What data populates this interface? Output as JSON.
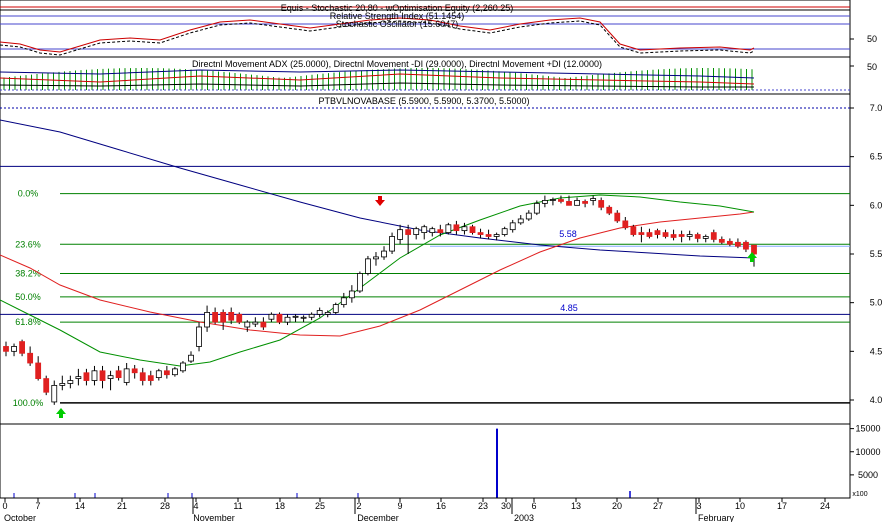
{
  "colors": {
    "background": "#ffffff",
    "frame": "#000000",
    "up_candle": "#ffffff",
    "down_candle": "#e02020",
    "fib_line": "#008000",
    "fib_label": "#008000",
    "blue_line": "#000080",
    "red_line": "#e02020",
    "green_line": "#009000",
    "volume_bar": "#0000cc",
    "arrow_red": "#e00000",
    "arrow_green": "#00cc00",
    "annotation": "#0000cc",
    "grid_dotted": "#0000aa"
  },
  "indicator_panel": {
    "title_1": "Equis - Stochastic 20,80 - wOptimisation Equity (2,260.25)",
    "title_2": "Relative Strength Index (51.1454)",
    "title_3": "Stochastic Oscillator (15.6047)",
    "axis_label": "50"
  },
  "dmi_panel": {
    "title": "Directnl Movement ADX (25.0000), Directnl Movement -DI (29.0000), Directnl Movement +DI (12.0000)",
    "axis_label": "50"
  },
  "price_panel": {
    "title": "PTBVLNOVABASE (5.5900, 5.5900, 5.3700, 5.5000)",
    "fib_labels": [
      "0.0%",
      "23.6%",
      "38.2%",
      "50.0%",
      "61.8%",
      "100.0%"
    ],
    "annotation_1": "5.58",
    "annotation_2": "4.85",
    "y_tick_labels": [
      "7.0",
      "6.5",
      "6.0",
      "5.5",
      "5.0",
      "4.5",
      "4.0"
    ]
  },
  "volume_panel": {
    "y_tick_labels": [
      "15000",
      "10000",
      "5000",
      "x100"
    ]
  },
  "x_axis": {
    "day_labels": [
      "0",
      "7",
      "14",
      "21",
      "28",
      "4",
      "11",
      "18",
      "25",
      "2",
      "9",
      "16",
      "23",
      "30",
      "6",
      "13",
      "20",
      "27",
      "3",
      "10",
      "17",
      "24"
    ],
    "month_labels": [
      "October",
      "November",
      "December",
      "2003",
      "February"
    ]
  },
  "chart_data": {
    "type": "candlestick",
    "title": "PTBVLNOVABASE (5.5900, 5.5900, 5.3700, 5.5000)",
    "ylim": [
      3.9,
      7.15
    ],
    "fibonacci_levels": [
      {
        "label": "0.0%",
        "value": 6.12
      },
      {
        "label": "23.6%",
        "value": 5.6
      },
      {
        "label": "38.2%",
        "value": 5.3
      },
      {
        "label": "50.0%",
        "value": 5.06
      },
      {
        "label": "61.8%",
        "value": 4.8
      },
      {
        "label": "100.0%",
        "value": 3.97
      }
    ],
    "reference_lines": [
      7.0,
      6.4,
      4.88
    ],
    "candles": [
      {
        "o": 4.55,
        "h": 4.6,
        "l": 4.45,
        "c": 4.5
      },
      {
        "o": 4.5,
        "h": 4.58,
        "l": 4.45,
        "c": 4.55
      },
      {
        "o": 4.6,
        "h": 4.62,
        "l": 4.45,
        "c": 4.48
      },
      {
        "o": 4.48,
        "h": 4.55,
        "l": 4.35,
        "c": 4.38
      },
      {
        "o": 4.38,
        "h": 4.45,
        "l": 4.2,
        "c": 4.22
      },
      {
        "o": 4.22,
        "h": 4.25,
        "l": 4.05,
        "c": 4.08
      },
      {
        "o": 3.98,
        "h": 4.2,
        "l": 3.95,
        "c": 4.15
      },
      {
        "o": 4.15,
        "h": 4.25,
        "l": 4.1,
        "c": 4.17
      },
      {
        "o": 4.17,
        "h": 4.25,
        "l": 4.12,
        "c": 4.2
      },
      {
        "o": 4.22,
        "h": 4.32,
        "l": 4.15,
        "c": 4.24
      },
      {
        "o": 4.28,
        "h": 4.32,
        "l": 4.15,
        "c": 4.2
      },
      {
        "o": 4.2,
        "h": 4.35,
        "l": 4.15,
        "c": 4.3
      },
      {
        "o": 4.3,
        "h": 4.35,
        "l": 4.12,
        "c": 4.2
      },
      {
        "o": 4.22,
        "h": 4.3,
        "l": 4.1,
        "c": 4.25
      },
      {
        "o": 4.3,
        "h": 4.35,
        "l": 4.2,
        "c": 4.23
      },
      {
        "o": 4.18,
        "h": 4.38,
        "l": 4.15,
        "c": 4.32
      },
      {
        "o": 4.32,
        "h": 4.36,
        "l": 4.22,
        "c": 4.28
      },
      {
        "o": 4.28,
        "h": 4.33,
        "l": 4.15,
        "c": 4.2
      },
      {
        "o": 4.25,
        "h": 4.3,
        "l": 4.15,
        "c": 4.2
      },
      {
        "o": 4.23,
        "h": 4.32,
        "l": 4.2,
        "c": 4.3
      },
      {
        "o": 4.3,
        "h": 4.35,
        "l": 4.22,
        "c": 4.26
      },
      {
        "o": 4.26,
        "h": 4.34,
        "l": 4.24,
        "c": 4.32
      },
      {
        "o": 4.3,
        "h": 4.4,
        "l": 4.28,
        "c": 4.38
      },
      {
        "o": 4.4,
        "h": 4.5,
        "l": 4.38,
        "c": 4.46
      },
      {
        "o": 4.55,
        "h": 4.8,
        "l": 4.5,
        "c": 4.75
      },
      {
        "o": 4.75,
        "h": 4.97,
        "l": 4.7,
        "c": 4.9
      },
      {
        "o": 4.9,
        "h": 4.95,
        "l": 4.78,
        "c": 4.8
      },
      {
        "o": 4.9,
        "h": 4.93,
        "l": 4.72,
        "c": 4.8
      },
      {
        "o": 4.9,
        "h": 4.95,
        "l": 4.78,
        "c": 4.82
      },
      {
        "o": 4.88,
        "h": 4.9,
        "l": 4.78,
        "c": 4.8
      },
      {
        "o": 4.75,
        "h": 4.82,
        "l": 4.7,
        "c": 4.8
      },
      {
        "o": 4.78,
        "h": 4.85,
        "l": 4.75,
        "c": 4.8
      },
      {
        "o": 4.8,
        "h": 4.85,
        "l": 4.72,
        "c": 4.75
      },
      {
        "o": 4.83,
        "h": 4.9,
        "l": 4.8,
        "c": 4.88
      },
      {
        "o": 4.88,
        "h": 4.9,
        "l": 4.78,
        "c": 4.8
      },
      {
        "o": 4.8,
        "h": 4.88,
        "l": 4.77,
        "c": 4.85
      },
      {
        "o": 4.85,
        "h": 4.88,
        "l": 4.8,
        "c": 4.86
      },
      {
        "o": 4.84,
        "h": 4.87,
        "l": 4.8,
        "c": 4.85
      },
      {
        "o": 4.85,
        "h": 4.9,
        "l": 4.82,
        "c": 4.88
      },
      {
        "o": 4.88,
        "h": 4.95,
        "l": 4.85,
        "c": 4.92
      },
      {
        "o": 4.88,
        "h": 4.92,
        "l": 4.85,
        "c": 4.9
      },
      {
        "o": 4.9,
        "h": 5.0,
        "l": 4.88,
        "c": 4.98
      },
      {
        "o": 4.98,
        "h": 5.1,
        "l": 4.95,
        "c": 5.05
      },
      {
        "o": 5.05,
        "h": 5.18,
        "l": 5.0,
        "c": 5.12
      },
      {
        "o": 5.12,
        "h": 5.32,
        "l": 5.1,
        "c": 5.3
      },
      {
        "o": 5.3,
        "h": 5.48,
        "l": 5.28,
        "c": 5.45
      },
      {
        "o": 5.45,
        "h": 5.52,
        "l": 5.38,
        "c": 5.47
      },
      {
        "o": 5.47,
        "h": 5.58,
        "l": 5.44,
        "c": 5.53
      },
      {
        "o": 5.53,
        "h": 5.72,
        "l": 5.5,
        "c": 5.68
      },
      {
        "o": 5.65,
        "h": 5.8,
        "l": 5.6,
        "c": 5.75
      },
      {
        "o": 5.75,
        "h": 5.8,
        "l": 5.5,
        "c": 5.7
      },
      {
        "o": 5.7,
        "h": 5.78,
        "l": 5.65,
        "c": 5.76
      },
      {
        "o": 5.72,
        "h": 5.8,
        "l": 5.65,
        "c": 5.78
      },
      {
        "o": 5.72,
        "h": 5.78,
        "l": 5.68,
        "c": 5.76
      },
      {
        "o": 5.75,
        "h": 5.8,
        "l": 5.68,
        "c": 5.72
      },
      {
        "o": 5.72,
        "h": 5.82,
        "l": 5.7,
        "c": 5.8
      },
      {
        "o": 5.8,
        "h": 5.84,
        "l": 5.7,
        "c": 5.74
      },
      {
        "o": 5.74,
        "h": 5.82,
        "l": 5.7,
        "c": 5.78
      },
      {
        "o": 5.78,
        "h": 5.8,
        "l": 5.7,
        "c": 5.72
      },
      {
        "o": 5.72,
        "h": 5.76,
        "l": 5.66,
        "c": 5.7
      },
      {
        "o": 5.7,
        "h": 5.75,
        "l": 5.65,
        "c": 5.68
      },
      {
        "o": 5.68,
        "h": 5.72,
        "l": 5.64,
        "c": 5.7
      },
      {
        "o": 5.7,
        "h": 5.78,
        "l": 5.68,
        "c": 5.76
      },
      {
        "o": 5.75,
        "h": 5.85,
        "l": 5.72,
        "c": 5.82
      },
      {
        "o": 5.82,
        "h": 5.9,
        "l": 5.8,
        "c": 5.86
      },
      {
        "o": 5.86,
        "h": 5.95,
        "l": 5.84,
        "c": 5.92
      },
      {
        "o": 5.92,
        "h": 6.05,
        "l": 5.9,
        "c": 6.02
      },
      {
        "o": 6.02,
        "h": 6.1,
        "l": 5.98,
        "c": 6.05
      },
      {
        "o": 6.05,
        "h": 6.08,
        "l": 6.0,
        "c": 6.06
      },
      {
        "o": 6.06,
        "h": 6.1,
        "l": 6.02,
        "c": 6.04
      },
      {
        "o": 6.04,
        "h": 6.1,
        "l": 6.0,
        "c": 6.0
      },
      {
        "o": 6.0,
        "h": 6.08,
        "l": 6.0,
        "c": 6.05
      },
      {
        "o": 6.04,
        "h": 6.06,
        "l": 5.98,
        "c": 6.02
      },
      {
        "o": 6.05,
        "h": 6.1,
        "l": 6.0,
        "c": 6.07
      },
      {
        "o": 6.05,
        "h": 6.08,
        "l": 5.95,
        "c": 5.98
      },
      {
        "o": 5.98,
        "h": 6.0,
        "l": 5.9,
        "c": 5.92
      },
      {
        "o": 5.92,
        "h": 5.95,
        "l": 5.82,
        "c": 5.84
      },
      {
        "o": 5.84,
        "h": 5.88,
        "l": 5.75,
        "c": 5.77
      },
      {
        "o": 5.78,
        "h": 5.8,
        "l": 5.68,
        "c": 5.7
      },
      {
        "o": 5.72,
        "h": 5.78,
        "l": 5.62,
        "c": 5.7
      },
      {
        "o": 5.72,
        "h": 5.76,
        "l": 5.66,
        "c": 5.68
      },
      {
        "o": 5.74,
        "h": 5.76,
        "l": 5.66,
        "c": 5.7
      },
      {
        "o": 5.72,
        "h": 5.75,
        "l": 5.66,
        "c": 5.68
      },
      {
        "o": 5.7,
        "h": 5.75,
        "l": 5.64,
        "c": 5.67
      },
      {
        "o": 5.7,
        "h": 5.74,
        "l": 5.62,
        "c": 5.68
      },
      {
        "o": 5.68,
        "h": 5.74,
        "l": 5.64,
        "c": 5.7
      },
      {
        "o": 5.7,
        "h": 5.72,
        "l": 5.62,
        "c": 5.66
      },
      {
        "o": 5.66,
        "h": 5.7,
        "l": 5.62,
        "c": 5.68
      },
      {
        "o": 5.72,
        "h": 5.75,
        "l": 5.62,
        "c": 5.65
      },
      {
        "o": 5.65,
        "h": 5.68,
        "l": 5.6,
        "c": 5.62
      },
      {
        "o": 5.63,
        "h": 5.66,
        "l": 5.58,
        "c": 5.6
      },
      {
        "o": 5.62,
        "h": 5.66,
        "l": 5.56,
        "c": 5.58
      },
      {
        "o": 5.62,
        "h": 5.64,
        "l": 5.52,
        "c": 5.55
      },
      {
        "o": 5.59,
        "h": 5.59,
        "l": 5.37,
        "c": 5.5
      }
    ],
    "volume": [
      0,
      0,
      0,
      0,
      0,
      0,
      0,
      0,
      0,
      0,
      0,
      0,
      0,
      0,
      0,
      0,
      0,
      0,
      0,
      0,
      0,
      0,
      0,
      0,
      0,
      0,
      0,
      0,
      0,
      0,
      0,
      0,
      0,
      0,
      0,
      0,
      0,
      0,
      0,
      0,
      0,
      0,
      0,
      0,
      0,
      0,
      0,
      0,
      0,
      0,
      0,
      0,
      0,
      0,
      0,
      0,
      0,
      0,
      0,
      0,
      0,
      0,
      0,
      0,
      15000,
      0,
      0,
      0,
      0,
      0,
      0,
      0,
      0,
      0,
      0,
      0,
      0,
      0,
      0,
      0,
      0,
      0,
      0,
      0,
      0,
      0,
      0,
      0,
      0,
      0,
      0,
      0,
      0,
      0,
      0
    ],
    "annotations": [
      {
        "text": "5.58",
        "value": 5.58
      },
      {
        "text": "4.85",
        "value": 4.85
      }
    ]
  }
}
